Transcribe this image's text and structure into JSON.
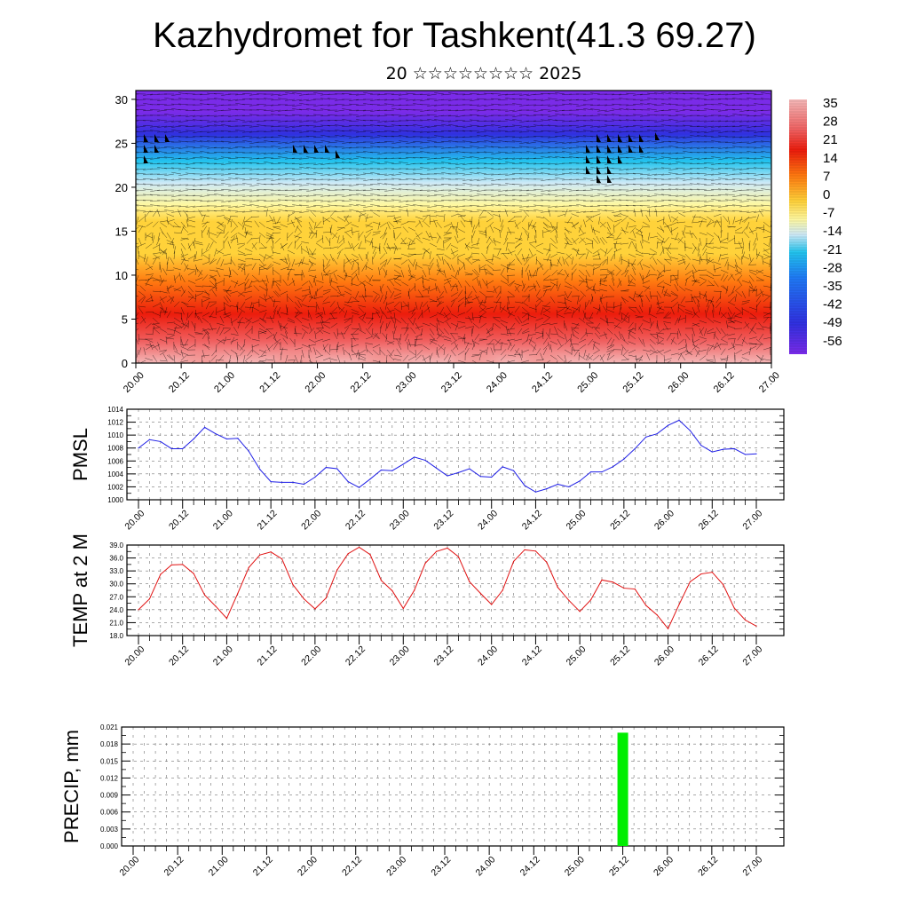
{
  "page": {
    "title": "Kazhydromet for Tashkent(41.3 69.27)",
    "subtitle": "20 ☆☆☆☆☆☆☆☆ 2025"
  },
  "colors": {
    "pmsl_line": "#1f1fe6",
    "temp_line": "#e01010",
    "precip_bar": "#00ee00",
    "colormap": [
      "#7a2be8",
      "#3030e0",
      "#1f7af5",
      "#22c4ee",
      "#cfeaf7",
      "#fff8a0",
      "#ffd23a",
      "#ff7a10",
      "#ec1c0c",
      "#f06060",
      "#f4b8b8"
    ]
  },
  "chart_data": [
    {
      "type": "heatmap",
      "id": "cross_section",
      "title": "",
      "ylabel": "",
      "xlabel": "",
      "x_ticks": [
        "20.00",
        "20.12",
        "21.00",
        "21.12",
        "22.00",
        "22.12",
        "23.00",
        "23.12",
        "24.00",
        "24.12",
        "25.00",
        "25.12",
        "26.00",
        "26.12",
        "27.00"
      ],
      "y_ticks": [
        0,
        5,
        10,
        15,
        20,
        25,
        30
      ],
      "ylim": [
        0,
        31
      ],
      "colorbar_labels": [
        "35",
        "28",
        "21",
        "14",
        "7",
        "0",
        "-7",
        "-14",
        "-21",
        "-28",
        "-35",
        "-42",
        "-49",
        "-56"
      ],
      "overlay": "wind barbs"
    },
    {
      "type": "line",
      "id": "pmsl",
      "ylabel": "PMSL",
      "x_ticks": [
        "20.00",
        "20.12",
        "21.00",
        "21.12",
        "22.00",
        "22.12",
        "23.00",
        "23.12",
        "24.00",
        "24.12",
        "25.00",
        "25.12",
        "26.00",
        "26.12",
        "27.00"
      ],
      "y_ticks": [
        "1000",
        "1002",
        "1004",
        "1006",
        "1008",
        "1010",
        "1012",
        "1014"
      ],
      "ylim": [
        1000,
        1014
      ],
      "x": [
        0,
        3,
        6,
        9,
        12,
        15,
        18,
        21,
        24,
        27,
        30,
        33,
        36,
        39,
        42,
        45,
        48,
        51,
        54,
        57,
        60,
        63,
        66,
        69,
        72,
        75,
        78,
        81,
        84,
        87,
        90,
        93,
        96,
        99,
        102,
        105,
        108,
        111,
        114,
        117,
        120,
        123,
        126,
        129,
        132,
        135,
        138,
        141,
        144,
        147,
        150,
        153,
        156,
        159,
        162,
        165,
        168
      ],
      "values": [
        1008.0,
        1009.3,
        1009.0,
        1007.9,
        1007.9,
        1009.4,
        1011.2,
        1010.2,
        1009.4,
        1009.5,
        1007.5,
        1004.7,
        1002.8,
        1002.7,
        1002.7,
        1002.4,
        1003.5,
        1005.0,
        1004.8,
        1002.8,
        1001.9,
        1003.2,
        1004.6,
        1004.5,
        1005.5,
        1006.6,
        1006.1,
        1004.9,
        1003.7,
        1004.2,
        1004.8,
        1003.6,
        1003.5,
        1005.1,
        1004.5,
        1002.2,
        1001.2,
        1001.7,
        1002.4,
        1002.0,
        1002.9,
        1004.3,
        1004.3,
        1005.1,
        1006.3,
        1007.9,
        1009.7,
        1010.2,
        1011.5,
        1012.3,
        1010.7,
        1008.4,
        1007.4,
        1007.8,
        1007.9,
        1007.0,
        1007.1
      ]
    },
    {
      "type": "line",
      "id": "temp",
      "ylabel": "TEMP at 2 M",
      "x_ticks": [
        "20.00",
        "20.12",
        "21.00",
        "21.12",
        "22.00",
        "22.12",
        "23.00",
        "23.12",
        "24.00",
        "24.12",
        "25.00",
        "25.12",
        "26.00",
        "26.12",
        "27.00"
      ],
      "y_ticks": [
        "18.0",
        "21.0",
        "24.0",
        "27.0",
        "30.0",
        "33.0",
        "36.0",
        "39.0"
      ],
      "ylim": [
        18,
        39
      ],
      "x": [
        0,
        3,
        6,
        9,
        12,
        15,
        18,
        21,
        24,
        27,
        30,
        33,
        36,
        39,
        42,
        45,
        48,
        51,
        54,
        57,
        60,
        63,
        66,
        69,
        72,
        75,
        78,
        81,
        84,
        87,
        90,
        93,
        96,
        99,
        102,
        105,
        108,
        111,
        114,
        117,
        120,
        123,
        126,
        129,
        132,
        135,
        138,
        141,
        144,
        147,
        150,
        153,
        156,
        159,
        162,
        165,
        168
      ],
      "values": [
        24.0,
        26.5,
        32.2,
        34.4,
        34.5,
        32.4,
        27.4,
        24.8,
        22.0,
        27.8,
        33.8,
        36.7,
        37.4,
        35.8,
        29.8,
        26.5,
        24.2,
        26.7,
        33.2,
        37.0,
        38.5,
        36.8,
        30.8,
        28.4,
        24.3,
        28.5,
        34.8,
        37.5,
        38.3,
        36.3,
        30.5,
        27.8,
        25.2,
        28.5,
        35.2,
        37.9,
        37.6,
        35.0,
        29.2,
        26.2,
        23.6,
        26.3,
        30.9,
        30.4,
        29.0,
        28.8,
        25.0,
        22.8,
        19.6,
        25.2,
        30.5,
        32.3,
        32.7,
        29.8,
        24.4,
        21.6,
        20.2
      ]
    },
    {
      "type": "bar",
      "id": "precip",
      "ylabel": "PRECIP, mm",
      "x_ticks": [
        "20.00",
        "20.12",
        "21.00",
        "21.12",
        "22.00",
        "22.12",
        "23.00",
        "23.12",
        "24.00",
        "24.12",
        "25.00",
        "25.12",
        "26.00",
        "26.12",
        "27.00"
      ],
      "y_ticks": [
        "0.000",
        "0.003",
        "0.006",
        "0.009",
        "0.012",
        "0.015",
        "0.018",
        "0.021"
      ],
      "ylim": [
        0,
        0.021
      ],
      "x": [
        132
      ],
      "values": [
        0.02
      ]
    }
  ]
}
